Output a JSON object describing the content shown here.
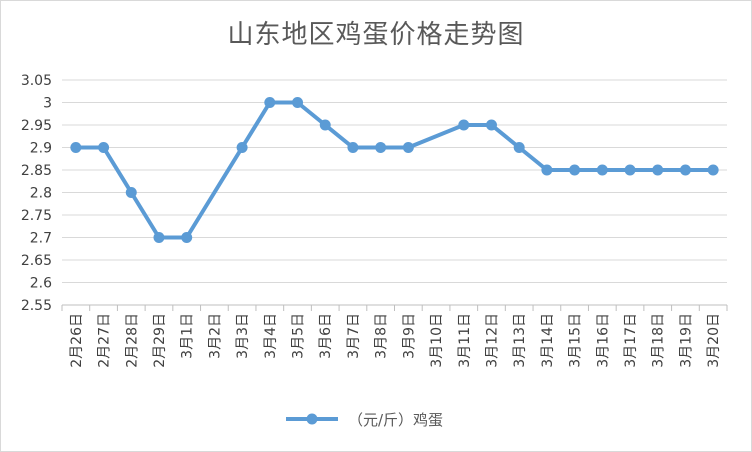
{
  "chart_data": {
    "type": "line",
    "title": "山东地区鸡蛋价格走势图",
    "xlabel": "",
    "ylabel": "",
    "ylim": [
      2.55,
      3.05
    ],
    "ytick_step": 0.05,
    "yticks": [
      "2.55",
      "2.6",
      "2.65",
      "2.7",
      "2.75",
      "2.8",
      "2.85",
      "2.9",
      "2.95",
      "3",
      "3.05"
    ],
    "grid": true,
    "legend_position": "bottom",
    "categories": [
      "2月26日",
      "2月27日",
      "2月28日",
      "2月29日",
      "3月1日",
      "3月2日",
      "3月3日",
      "3月4日",
      "3月5日",
      "3月6日",
      "3月7日",
      "3月8日",
      "3月9日",
      "3月10日",
      "3月11日",
      "3月12日",
      "3月13日",
      "3月14日",
      "3月15日",
      "3月16日",
      "3月17日",
      "3月18日",
      "3月19日",
      "3月20日"
    ],
    "series": [
      {
        "name": "（元/斤）鸡蛋",
        "color": "#5b9bd5",
        "values": [
          2.9,
          2.9,
          2.8,
          2.7,
          2.7,
          null,
          2.9,
          3.0,
          3.0,
          2.95,
          2.9,
          2.9,
          2.9,
          null,
          2.95,
          2.95,
          2.9,
          2.85,
          2.85,
          2.85,
          2.85,
          2.85,
          2.85,
          2.85
        ]
      }
    ]
  }
}
